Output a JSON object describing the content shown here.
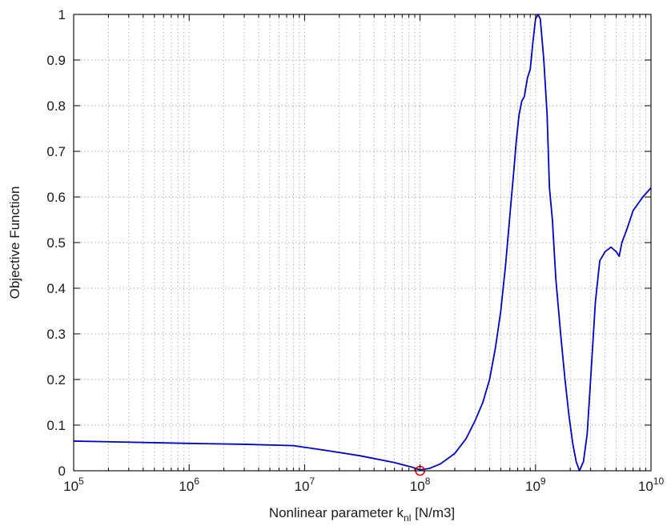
{
  "chart_data": {
    "type": "line",
    "title": "",
    "xlabel": {
      "text": "Nonlinear parameter k",
      "subscript": "nl",
      "unit": " [N/m3]"
    },
    "ylabel": "Objective Function",
    "xscale": "log",
    "xlim": [
      100000,
      10000000000
    ],
    "ylim": [
      0,
      1
    ],
    "grid": true,
    "x_ticks": [
      {
        "base": "10",
        "exp": "5",
        "value": 100000
      },
      {
        "base": "10",
        "exp": "6",
        "value": 1000000
      },
      {
        "base": "10",
        "exp": "7",
        "value": 10000000
      },
      {
        "base": "10",
        "exp": "8",
        "value": 100000000
      },
      {
        "base": "10",
        "exp": "9",
        "value": 1000000000
      },
      {
        "base": "10",
        "exp": "10",
        "value": 10000000000
      }
    ],
    "y_ticks": [
      "0",
      "0.1",
      "0.2",
      "0.3",
      "0.4",
      "0.5",
      "0.6",
      "0.7",
      "0.8",
      "0.9",
      "1"
    ],
    "series": [
      {
        "color": "#0000cc",
        "x": [
          100000,
          1000000,
          3000000,
          8000000,
          15000000,
          30000000,
          60000000,
          85000000,
          100000000,
          120000000,
          150000000,
          200000000,
          250000000,
          300000000,
          350000000,
          400000000,
          450000000,
          500000000,
          550000000,
          600000000,
          650000000,
          680000000,
          720000000,
          760000000,
          800000000,
          850000000,
          900000000,
          950000000,
          1000000000,
          1050000000,
          1100000000,
          1180000000,
          1260000000,
          1320000000,
          1400000000,
          1500000000,
          1650000000,
          1800000000,
          1950000000,
          2100000000,
          2250000000,
          2400000000,
          2600000000,
          2800000000,
          3000000000,
          3300000000,
          3600000000,
          4000000000,
          4500000000,
          5000000000,
          5300000000,
          5600000000,
          6200000000,
          7000000000,
          8500000000,
          10000000000
        ],
        "y": [
          0.065,
          0.06,
          0.058,
          0.055,
          0.045,
          0.033,
          0.018,
          0.008,
          0.002,
          0.005,
          0.015,
          0.038,
          0.07,
          0.11,
          0.15,
          0.2,
          0.27,
          0.35,
          0.45,
          0.56,
          0.66,
          0.72,
          0.78,
          0.81,
          0.82,
          0.86,
          0.88,
          0.94,
          0.99,
          1.0,
          0.99,
          0.9,
          0.78,
          0.62,
          0.55,
          0.42,
          0.3,
          0.2,
          0.12,
          0.06,
          0.02,
          0.0,
          0.02,
          0.08,
          0.2,
          0.37,
          0.46,
          0.48,
          0.49,
          0.48,
          0.47,
          0.5,
          0.53,
          0.57,
          0.6,
          0.62
        ]
      }
    ],
    "marker": {
      "x": 100000000,
      "y": 0,
      "color": "#e00000",
      "shape": "circle"
    }
  }
}
